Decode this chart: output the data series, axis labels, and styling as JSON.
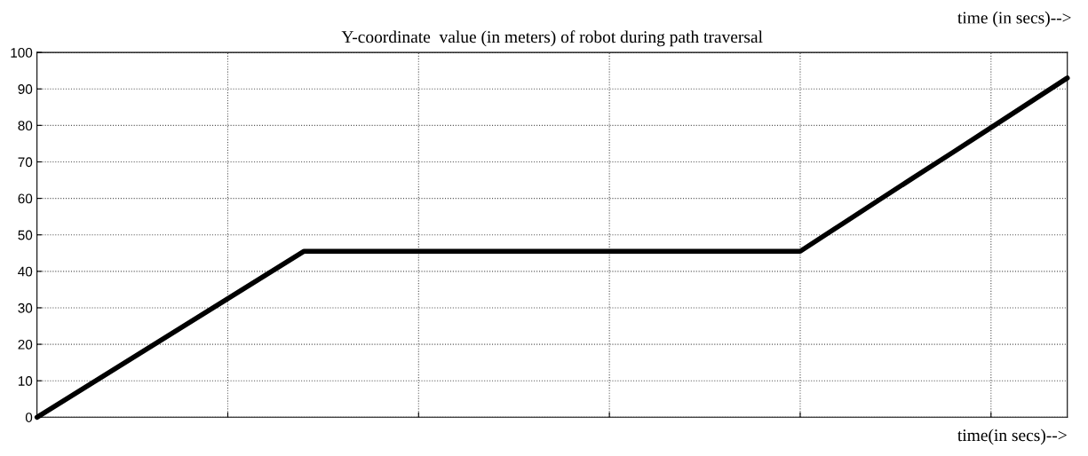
{
  "chart_data": {
    "type": "line",
    "title": "Y-coordinate  value (in meters) of robot during path traversal",
    "xlabel": "time(in secs)-->",
    "annotations": [
      "time (in secs)-->"
    ],
    "categories": [
      null,
      null,
      null,
      null,
      null,
      null,
      null,
      null,
      null,
      null,
      null,
      null,
      null,
      null,
      null,
      null,
      null,
      null,
      null,
      null,
      null,
      null,
      null,
      null,
      null,
      null,
      null,
      null
    ],
    "series": [
      {
        "color": "#000000",
        "values": [
          0,
          6.5,
          13,
          19.5,
          26,
          32.5,
          39,
          45.5,
          45.5,
          45.5,
          45.5,
          45.5,
          45.5,
          45.5,
          45.5,
          45.5,
          45.5,
          45.5,
          45.5,
          45.5,
          45.5,
          52.3,
          59.1,
          65.9,
          72.6,
          79.4,
          86.2,
          93
        ]
      }
    ],
    "ylim": [
      0,
      100
    ],
    "yticks": [
      0,
      10,
      20,
      30,
      40,
      50,
      60,
      70,
      80,
      90,
      100
    ],
    "grid": true,
    "line_style": "solid",
    "marker": "none"
  }
}
